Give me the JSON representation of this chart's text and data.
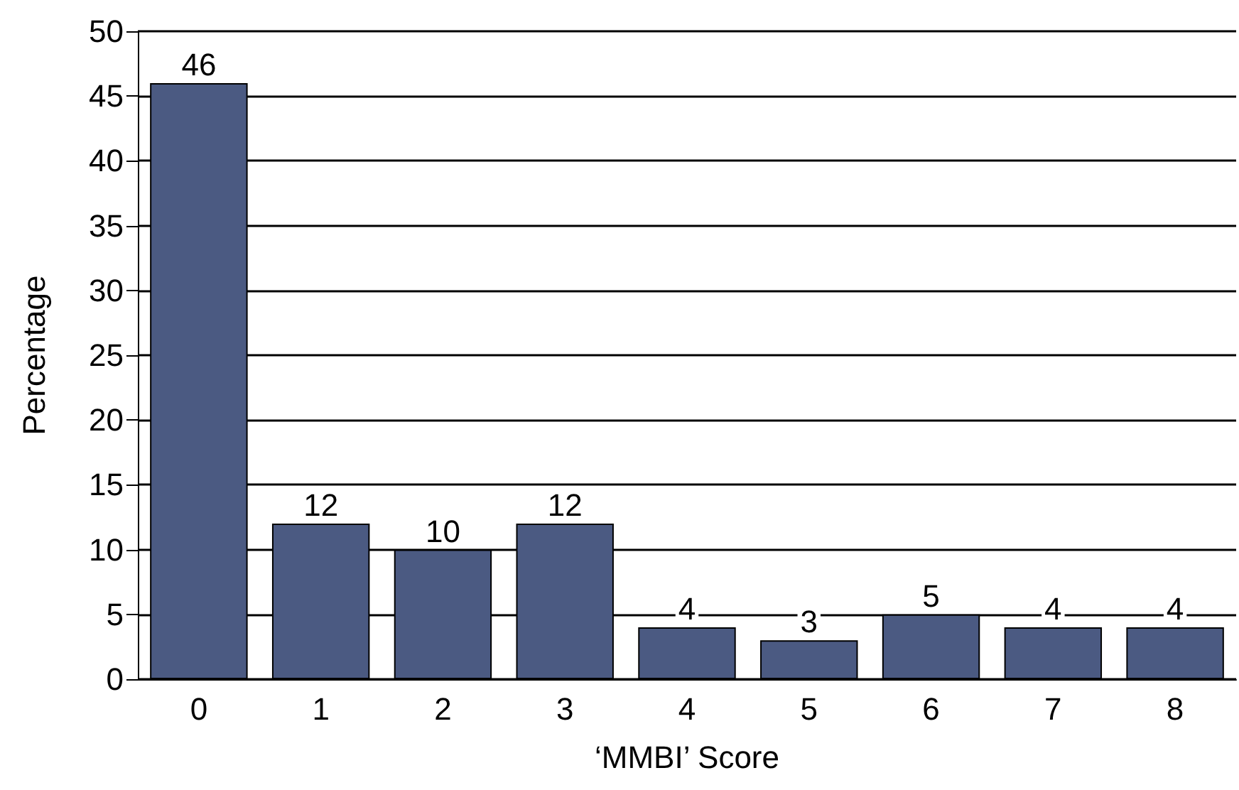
{
  "chart_data": {
    "type": "bar",
    "xlabel": "‘MMBI’ Score",
    "ylabel": "Percentage",
    "categories": [
      "0",
      "1",
      "2",
      "3",
      "4",
      "5",
      "6",
      "7",
      "8"
    ],
    "values": [
      46,
      12,
      10,
      12,
      4,
      3,
      5,
      4,
      4
    ],
    "color": "#4b5a82",
    "ylim": [
      0,
      50
    ],
    "yticks": [
      0,
      5,
      10,
      15,
      20,
      25,
      30,
      35,
      40,
      45,
      50
    ],
    "grid": "y",
    "data_labels": true
  }
}
